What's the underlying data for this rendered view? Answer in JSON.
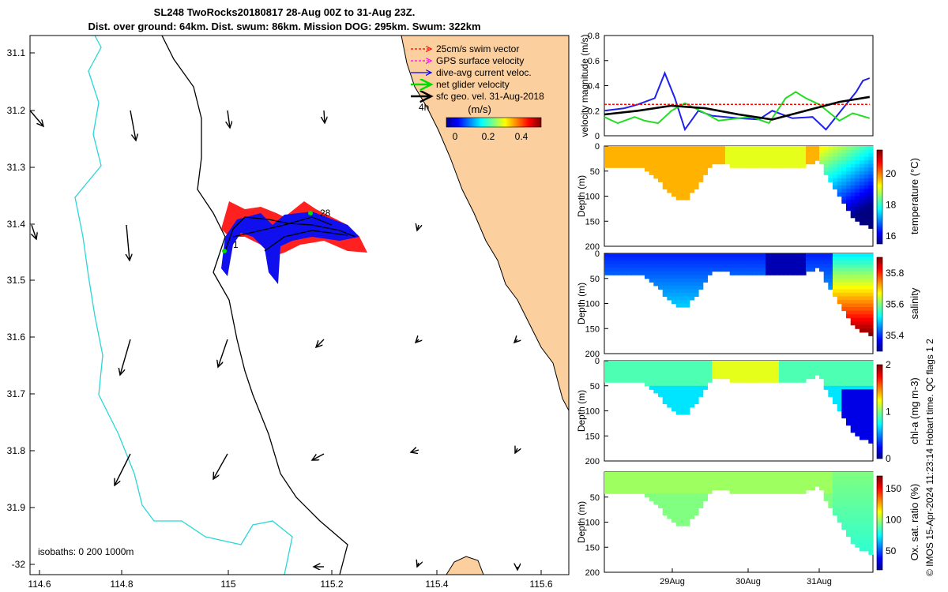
{
  "header": {
    "line1": "SL248 TwoRocks20180817 28-Aug 00Z to 31-Aug 23Z.",
    "line2": "Dist. over ground: 64km. Dist. swum: 86km. Mission DOG: 295km. Swum: 322km"
  },
  "map": {
    "lon_ticks": [
      "114.6",
      "114.8",
      "115",
      "115.2",
      "115.4",
      "115.6"
    ],
    "lat_ticks": [
      "31.1",
      "31.2",
      "31.3",
      "31.4",
      "31.5",
      "31.6",
      "31.7",
      "31.8",
      "31.9",
      "-32"
    ],
    "isobaths_label": "isobaths: 0   200  1000m",
    "start_label": "1",
    "end_label": "28",
    "time_label": "4h",
    "legend": [
      {
        "label": "25cm/s swim vector",
        "color": "#ff0000"
      },
      {
        "label": "GPS surface velocity",
        "color": "#ff00ff"
      },
      {
        "label": "dive-avg current veloc.",
        "color": "#0000ff"
      },
      {
        "label": "net glider velocity",
        "color": "#00dd00"
      },
      {
        "label": "sfc geo. vel. 31-Aug-2018",
        "color": "#000000"
      }
    ],
    "colorbar_title": "(m/s)",
    "colorbar_ticks": [
      "0",
      "0.2",
      "0.4"
    ],
    "colors": {
      "land": "#fbcf9e",
      "isobath_0": "#000000",
      "isobath_200": "#2ad6d6"
    }
  },
  "chart_data": [
    {
      "type": "line",
      "title": "",
      "ylabel": "velocity magnitude (m/s)",
      "ylim": [
        0,
        0.8
      ],
      "yticks": [
        "0",
        "0.2",
        "0.4",
        "0.6",
        "0.8"
      ],
      "xlim": [
        0,
        4
      ],
      "series": [
        {
          "name": "dive-avg current veloc.",
          "color": "#2020ee",
          "x": [
            0,
            0.3,
            0.5,
            0.75,
            0.9,
            1.05,
            1.2,
            1.4,
            1.6,
            2.0,
            2.3,
            2.5,
            2.8,
            3.1,
            3.3,
            3.6,
            3.75,
            3.85,
            3.95
          ],
          "y": [
            0.2,
            0.22,
            0.25,
            0.3,
            0.5,
            0.3,
            0.05,
            0.2,
            0.16,
            0.14,
            0.13,
            0.2,
            0.14,
            0.15,
            0.05,
            0.25,
            0.35,
            0.44,
            0.46
          ]
        },
        {
          "name": "net glider velocity",
          "color": "#22dd22",
          "x": [
            0,
            0.2,
            0.45,
            0.6,
            0.8,
            1.0,
            1.2,
            1.5,
            1.7,
            2.0,
            2.2,
            2.45,
            2.7,
            2.85,
            3.0,
            3.2,
            3.5,
            3.7,
            3.95
          ],
          "y": [
            0.15,
            0.1,
            0.15,
            0.12,
            0.1,
            0.2,
            0.26,
            0.18,
            0.12,
            0.14,
            0.15,
            0.1,
            0.3,
            0.35,
            0.3,
            0.25,
            0.12,
            0.18,
            0.14
          ]
        },
        {
          "name": "25cm/s swim vector",
          "color": "#ff0000",
          "x": [
            0,
            0.5,
            1,
            1.5,
            2,
            2.5,
            3,
            3.5,
            3.95
          ],
          "y": [
            0.25,
            0.25,
            0.25,
            0.25,
            0.25,
            0.25,
            0.25,
            0.25,
            0.25
          ]
        },
        {
          "name": "sfc geo. vel.",
          "color": "#000000",
          "x": [
            0,
            0.5,
            1,
            1.5,
            2,
            2.5,
            3,
            3.5,
            3.95
          ],
          "y": [
            0.17,
            0.2,
            0.24,
            0.22,
            0.17,
            0.13,
            0.2,
            0.27,
            0.31
          ]
        }
      ]
    },
    {
      "type": "heatmap",
      "ylabel": "Depth (m)",
      "clabel": "temperature (°C)",
      "ylim": [
        200,
        0
      ],
      "yticks": [
        "0",
        "50",
        "100",
        "150",
        "200"
      ],
      "cticks": [
        "16",
        "18",
        "20"
      ],
      "clim": [
        15.5,
        21.5
      ]
    },
    {
      "type": "heatmap",
      "ylabel": "Depth (m)",
      "clabel": "salinity",
      "ylim": [
        200,
        0
      ],
      "yticks": [
        "0",
        "50",
        "100",
        "150",
        "200"
      ],
      "cticks": [
        "35.4",
        "35.6",
        "35.8"
      ],
      "clim": [
        35.3,
        35.9
      ]
    },
    {
      "type": "heatmap",
      "ylabel": "Depth (m)",
      "clabel": "chl-a (mg m-3)",
      "ylim": [
        200,
        0
      ],
      "yticks": [
        "0",
        "50",
        "100",
        "150",
        "200"
      ],
      "cticks": [
        "0",
        "1",
        "2"
      ],
      "clim": [
        0,
        2
      ]
    },
    {
      "type": "heatmap",
      "ylabel": "Depth (m)",
      "clabel": "Ox. sat. ratio (%)",
      "ylim": [
        200,
        0
      ],
      "yticks": [
        "50",
        "100",
        "150",
        "200"
      ],
      "cticks": [
        "50",
        "100",
        "150"
      ],
      "clim": [
        20,
        170
      ],
      "xticks": [
        "29Aug",
        "30Aug",
        "31Aug"
      ]
    }
  ],
  "stamp": "© IMOS 15-Apr-2024 11:23:14 Hobart time. QC flags 1  2"
}
